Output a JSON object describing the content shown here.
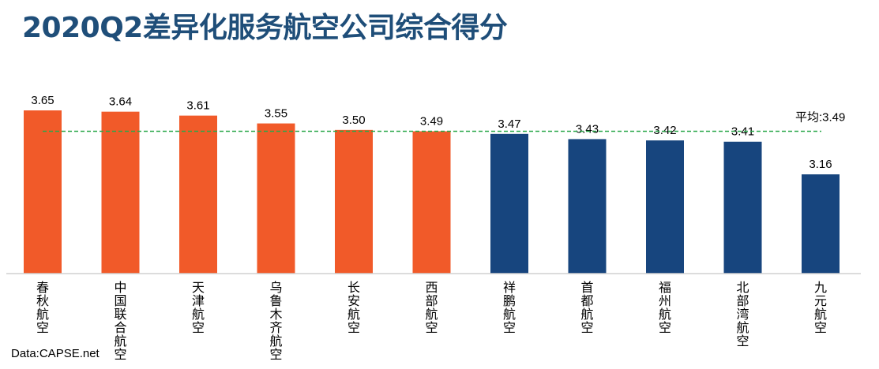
{
  "chart_data": {
    "type": "bar",
    "title": "2020Q2差异化服务航空公司综合得分",
    "categories": [
      "春秋航空",
      "中国联合航空",
      "天津航空",
      "乌鲁木齐航空",
      "长安航空",
      "西部航空",
      "祥鹏航空",
      "首都航空",
      "福州航空",
      "北部湾航空",
      "九元航空"
    ],
    "values": [
      3.65,
      3.64,
      3.61,
      3.55,
      3.5,
      3.49,
      3.47,
      3.43,
      3.42,
      3.41,
      3.16
    ],
    "value_labels": [
      "3.65",
      "3.64",
      "3.61",
      "3.55",
      "3.50",
      "3.49",
      "3.47",
      "3.43",
      "3.42",
      "3.41",
      "3.16"
    ],
    "bar_colors": [
      "#f15a29",
      "#f15a29",
      "#f15a29",
      "#f15a29",
      "#f15a29",
      "#f15a29",
      "#17457e",
      "#17457e",
      "#17457e",
      "#17457e",
      "#17457e"
    ],
    "average": {
      "value": 3.49,
      "label": "平均:3.49",
      "color": "#2aa84a"
    },
    "ylim": [
      2.4,
      3.7
    ],
    "grid": false,
    "source": "Data:CAPSE.net"
  }
}
